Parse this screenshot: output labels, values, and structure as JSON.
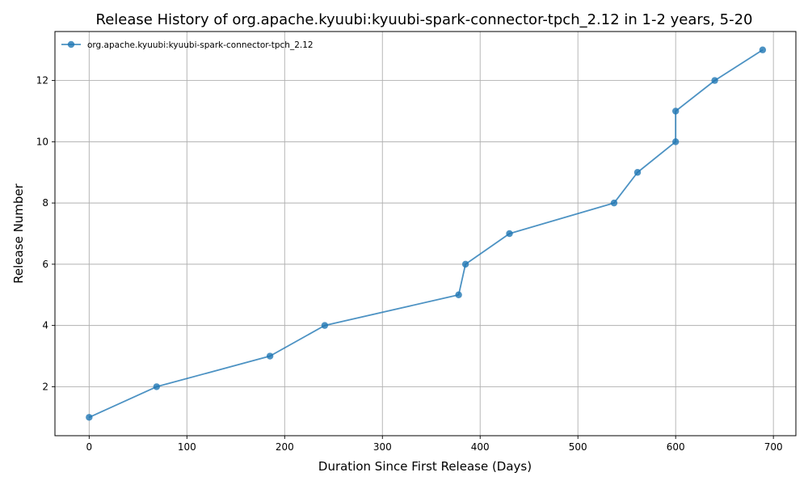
{
  "chart_data": {
    "type": "line",
    "title": "Release History of org.apache.kyuubi:kyuubi-spark-connector-tpch_2.12 in 1-2 years, 5-20",
    "xlabel": "Duration Since First Release (Days)",
    "ylabel": "Release Number",
    "xlim": [
      -35,
      723
    ],
    "ylim": [
      0.4,
      13.6
    ],
    "xticks": [
      0,
      100,
      200,
      300,
      400,
      500,
      600,
      700
    ],
    "yticks": [
      2,
      4,
      6,
      8,
      10,
      12
    ],
    "grid": true,
    "legend_position": "top-left",
    "series": [
      {
        "name": "org.apache.kyuubi:kyuubi-spark-connector-tpch_2.12",
        "color": "#1f77b4",
        "marker": "circle",
        "x": [
          0,
          69,
          185,
          241,
          378,
          385,
          430,
          537,
          561,
          600,
          600,
          640,
          689
        ],
        "y": [
          1,
          2,
          3,
          4,
          5,
          6,
          7,
          8,
          9,
          10,
          11,
          12,
          13
        ]
      }
    ]
  }
}
